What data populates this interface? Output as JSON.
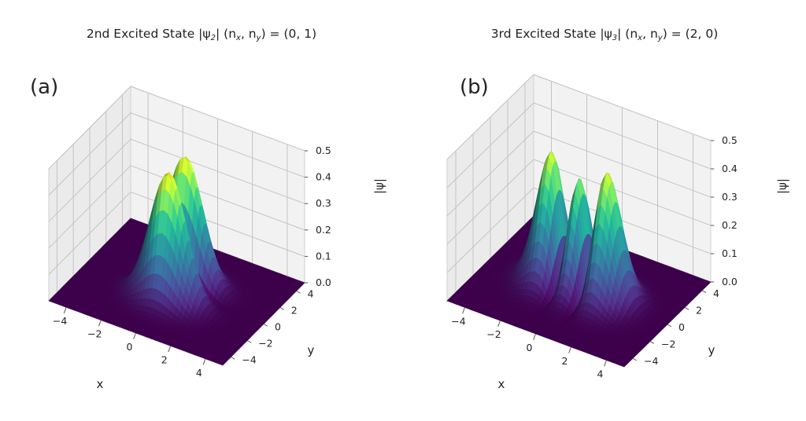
{
  "chart_data": [
    {
      "type": "surface3d",
      "title_parts": [
        "2nd Excited State |ψ",
        "2",
        "| (n",
        "x",
        ", n",
        "y",
        ") = (0, 1)"
      ],
      "panel_label": "(a)",
      "xlabel": "x",
      "ylabel": "y",
      "zlabel": "|ψ|",
      "xticks": [
        "−4",
        "−2",
        "0",
        "2",
        "4"
      ],
      "yticks": [
        "−4",
        "−2",
        "0",
        "2",
        "4"
      ],
      "zticks": [
        "0.0",
        "0.1",
        "0.2",
        "0.3",
        "0.4",
        "0.5"
      ],
      "xlim": [
        -5,
        5
      ],
      "ylim": [
        -5,
        5
      ],
      "zlim": [
        0,
        0.5
      ],
      "state": {
        "nx": 0,
        "ny": 1
      },
      "colormap": "viridis",
      "grid": true
    },
    {
      "type": "surface3d",
      "title_parts": [
        "3rd Excited State |ψ",
        "3",
        "| (n",
        "x",
        ", n",
        "y",
        ") = (2, 0)"
      ],
      "panel_label": "(b)",
      "xlabel": "x",
      "ylabel": "y",
      "zlabel": "|ψ|",
      "xticks": [
        "−4",
        "−2",
        "0",
        "2",
        "4"
      ],
      "yticks": [
        "−4",
        "−2",
        "0",
        "2",
        "4"
      ],
      "zticks": [
        "0.0",
        "0.1",
        "0.2",
        "0.3",
        "0.4",
        "0.5"
      ],
      "xlim": [
        -5,
        5
      ],
      "ylim": [
        -5,
        5
      ],
      "zlim": [
        0,
        0.5
      ],
      "state": {
        "nx": 2,
        "ny": 0
      },
      "colormap": "viridis",
      "grid": true
    }
  ]
}
